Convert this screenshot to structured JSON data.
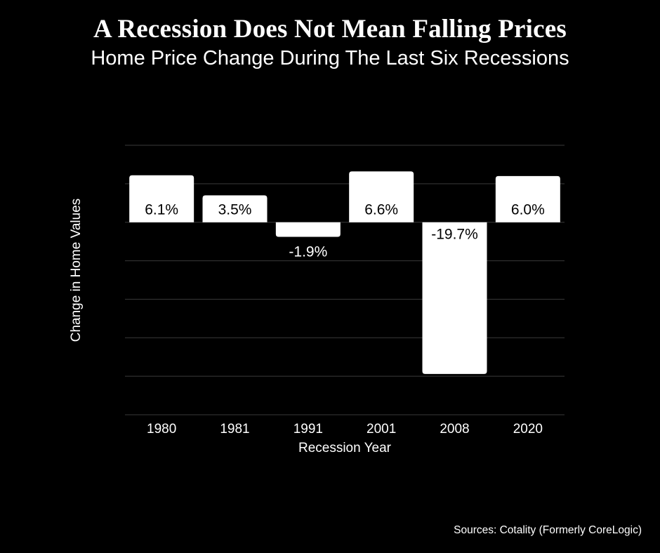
{
  "header": {
    "title": "A Recession Does Not Mean Falling Prices",
    "subtitle": "Home Price Change During The Last Six Recessions"
  },
  "footer": {
    "source": "Sources: Cotality (Formerly CoreLogic)"
  },
  "colors": {
    "background": "#000000",
    "bar": "#ffffff",
    "grid": "#3a3a3a",
    "text": "#ffffff",
    "bar_label": "#000000"
  },
  "chart_data": {
    "type": "bar",
    "title": "A Recession Does Not Mean Falling Prices",
    "subtitle": "Home Price Change During The Last Six Recessions",
    "categories": [
      "1980",
      "1981",
      "1991",
      "2001",
      "2008",
      "2020"
    ],
    "values": [
      6.1,
      3.5,
      -1.9,
      6.6,
      -19.7,
      6.0
    ],
    "data_labels": [
      "6.1%",
      "3.5%",
      "-1.9%",
      "6.6%",
      "-19.7%",
      "6.0%"
    ],
    "xlabel": "Recession Year",
    "ylabel": "Change in Home Values",
    "ylim": [
      -25,
      10
    ],
    "grid": true,
    "legend": "none"
  }
}
